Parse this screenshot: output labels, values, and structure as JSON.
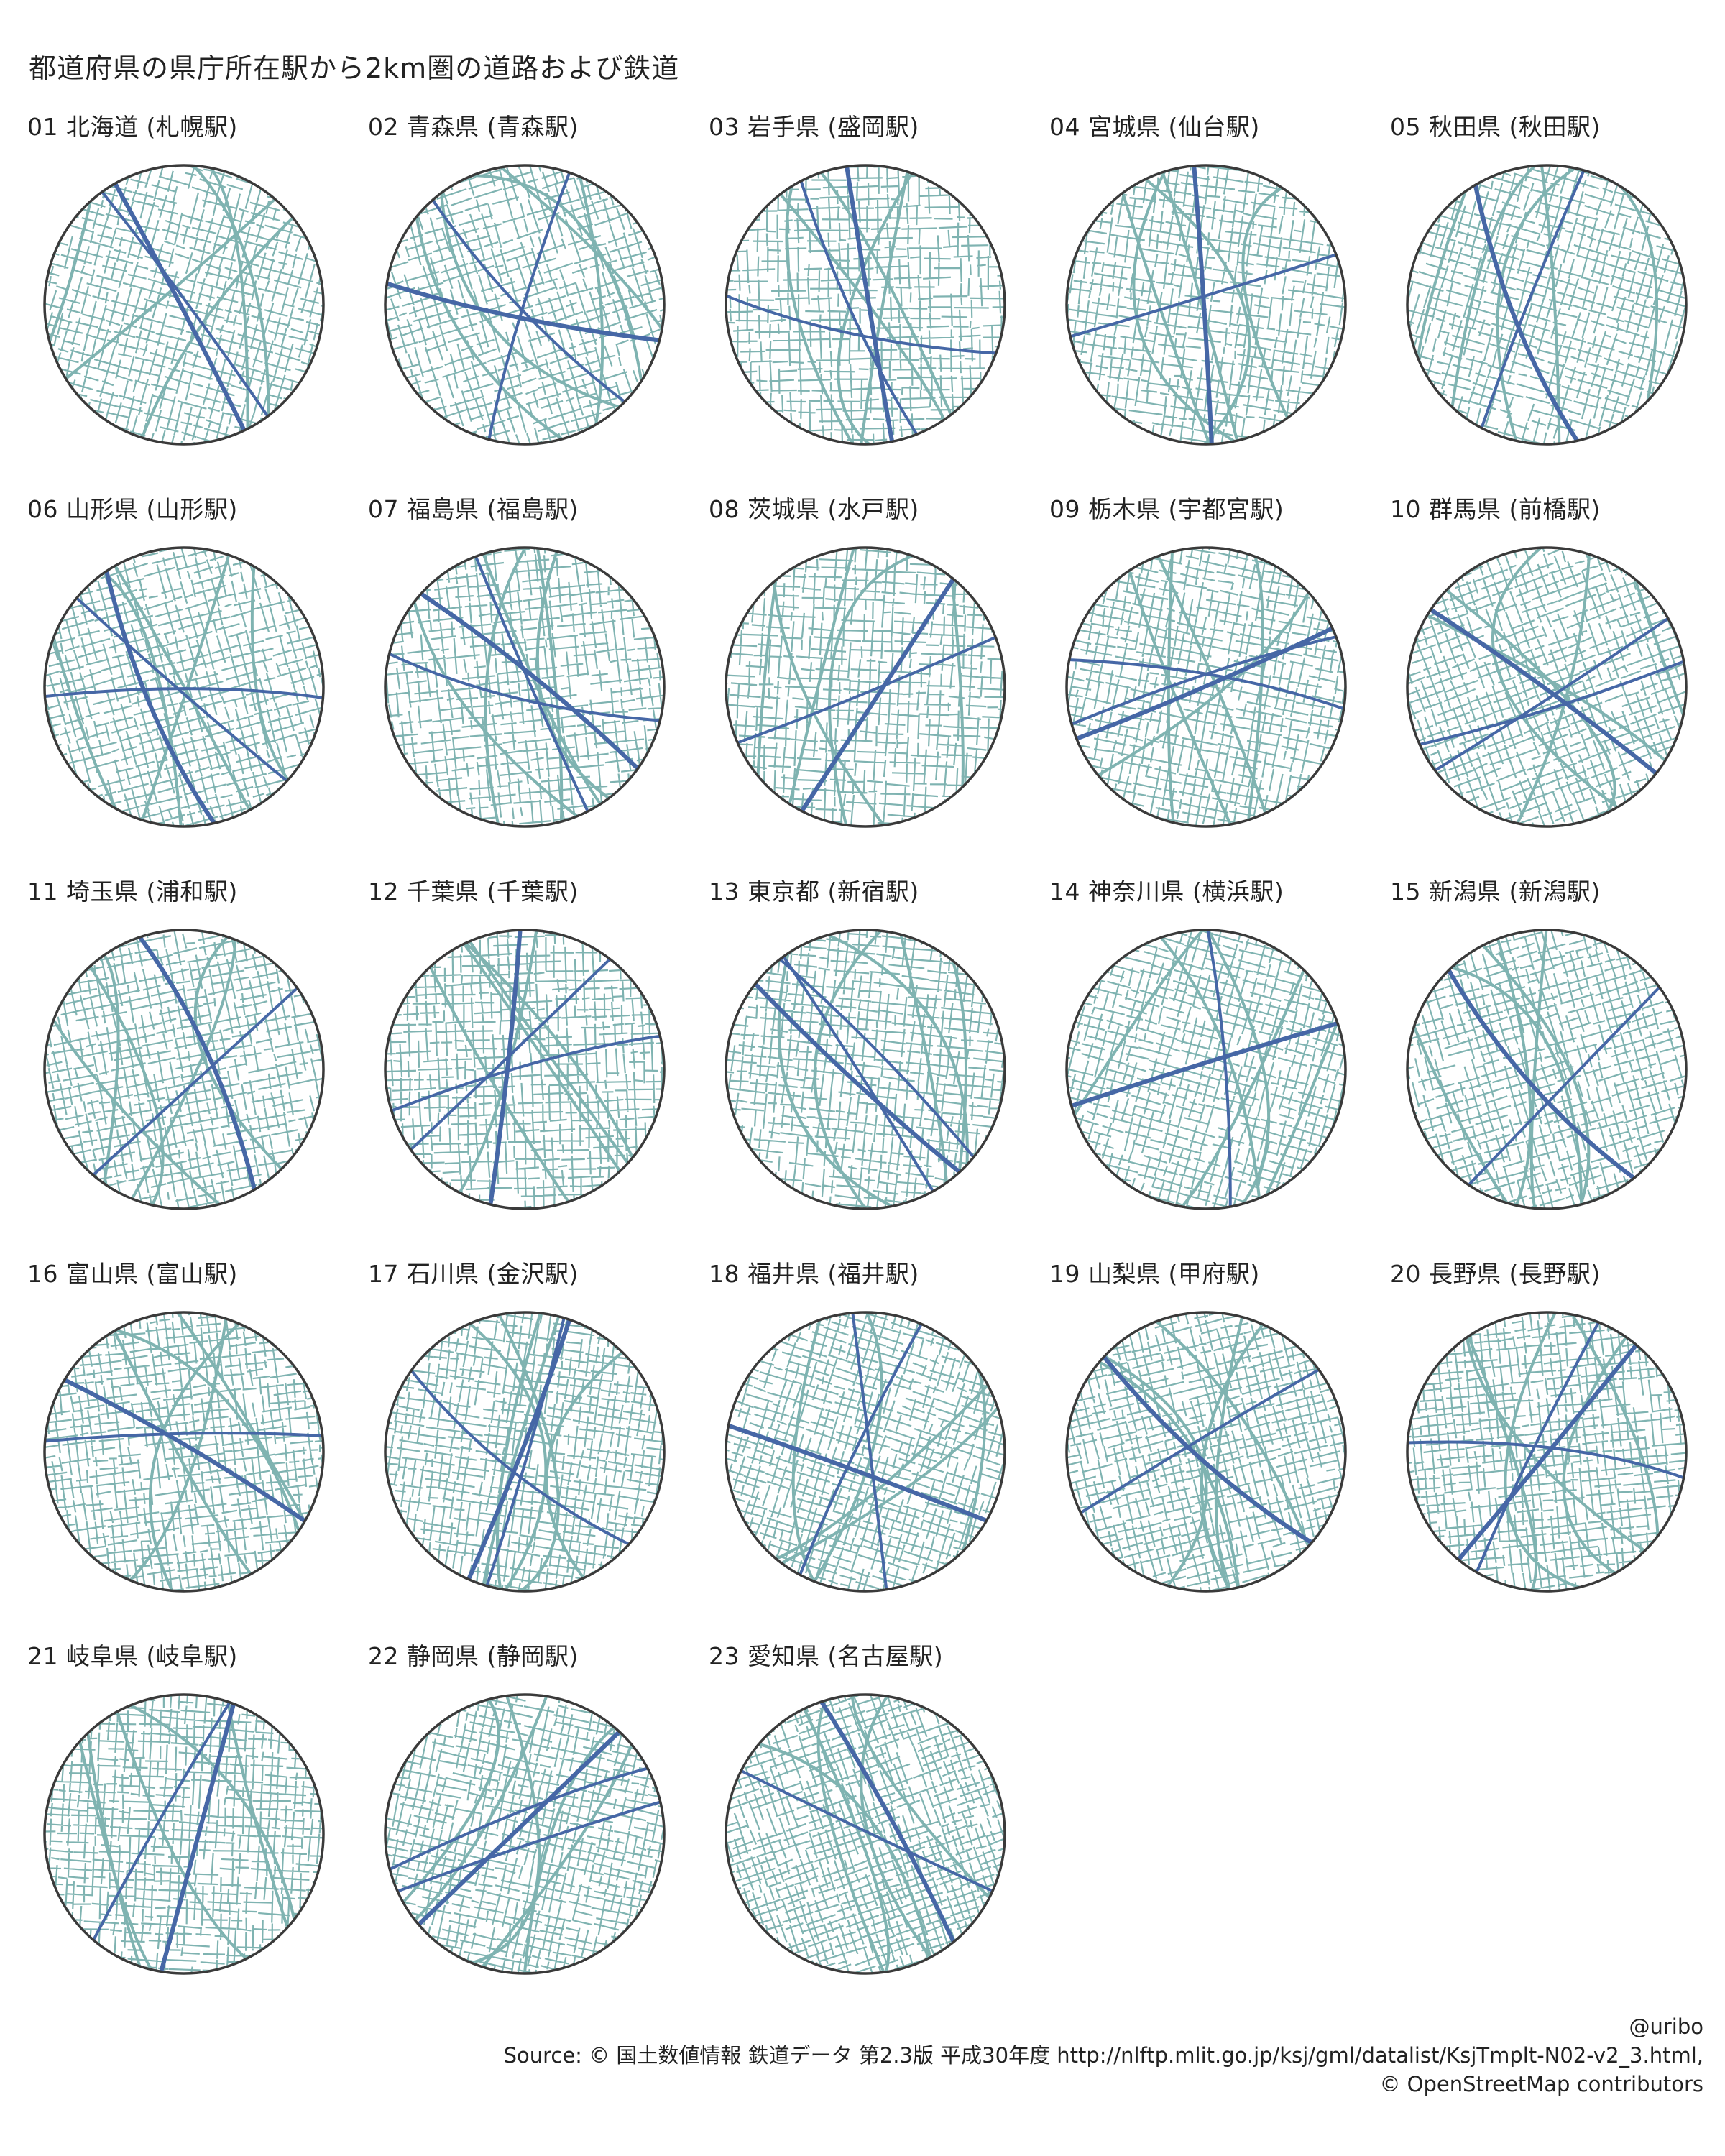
{
  "title": "都道府県の県庁所在駅から2km圏の道路および鉄道",
  "colors": {
    "road": "#7fb3b1",
    "rail": "#4667a6",
    "ring": "#3a3a3a",
    "background": "#ffffff"
  },
  "panels": [
    {
      "label": "01 北海道 (札幌駅)"
    },
    {
      "label": "02 青森県 (青森駅)"
    },
    {
      "label": "03 岩手県 (盛岡駅)"
    },
    {
      "label": "04 宮城県 (仙台駅)"
    },
    {
      "label": "05 秋田県 (秋田駅)"
    },
    {
      "label": "06 山形県 (山形駅)"
    },
    {
      "label": "07 福島県 (福島駅)"
    },
    {
      "label": "08 茨城県 (水戸駅)"
    },
    {
      "label": "09 栃木県 (宇都宮駅)"
    },
    {
      "label": "10 群馬県 (前橋駅)"
    },
    {
      "label": "11 埼玉県 (浦和駅)"
    },
    {
      "label": "12 千葉県 (千葉駅)"
    },
    {
      "label": "13 東京都 (新宿駅)"
    },
    {
      "label": "14 神奈川県 (横浜駅)"
    },
    {
      "label": "15 新潟県 (新潟駅)"
    },
    {
      "label": "16 富山県 (富山駅)"
    },
    {
      "label": "17 石川県 (金沢駅)"
    },
    {
      "label": "18 福井県 (福井駅)"
    },
    {
      "label": "19 山梨県 (甲府駅)"
    },
    {
      "label": "20 長野県 (長野駅)"
    },
    {
      "label": "21 岐阜県 (岐阜駅)"
    },
    {
      "label": "22 静岡県 (静岡駅)"
    },
    {
      "label": "23 愛知県 (名古屋駅)"
    }
  ],
  "credits": {
    "handle": "@uribo",
    "source_line": "Source: © 国土数値情報 鉄道データ 第2.3版 平成30年度 http://nlftp.mlit.go.jp/ksj/gml/datalist/KsjTmplt-N02-v2_3.html,",
    "osm_line": "© OpenStreetMap contributors"
  }
}
